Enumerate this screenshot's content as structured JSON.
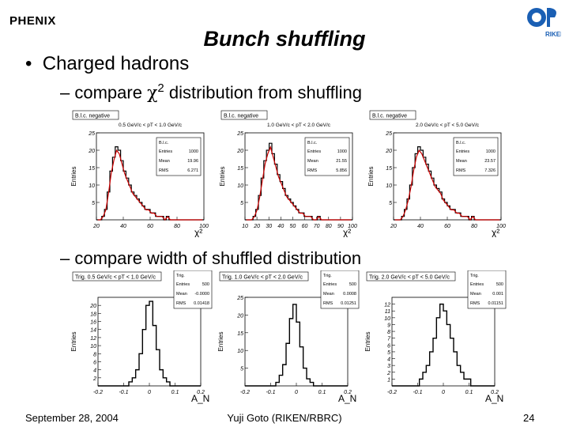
{
  "logo_left": "PHENIX",
  "logo_right": "RIKEN",
  "title": "Bunch shuffling",
  "bullet": "Charged hadrons",
  "sub1": {
    "prefix": "– compare ",
    "chi": "χ",
    "sup": "2",
    "suffix": " distribution from shuffling"
  },
  "sub2": "– compare width of shuffled distribution",
  "footer": {
    "date": "September 28, 2004",
    "author": "Yuji Goto (RIKEN/RBRC)",
    "page": "24"
  },
  "chi2_plots": [
    {
      "tag": "B.l.c. negative",
      "range": "0.5 GeV/c < pT < 1.0 GeV/c",
      "ylabel": "Entries",
      "xlabel": "χ²",
      "ylim": [
        0,
        25
      ],
      "xlim": [
        0,
        100
      ],
      "yticks": [
        "5",
        "10",
        "15",
        "20",
        "25"
      ],
      "xticks": [
        "20",
        "40",
        "60",
        "80",
        "100"
      ],
      "stats": [
        [
          "Entries",
          "1000"
        ],
        [
          "Mean",
          "19.96"
        ],
        [
          "RMS",
          "6.271"
        ]
      ],
      "hist": [
        0,
        0,
        1,
        3,
        8,
        14,
        18,
        21,
        20,
        17,
        14,
        12,
        10,
        8,
        7,
        6,
        5,
        4,
        3,
        3,
        2,
        2,
        1,
        1,
        1,
        0,
        1,
        0,
        0,
        0,
        0,
        0,
        0,
        0,
        0,
        0,
        0,
        0,
        0,
        0
      ]
    },
    {
      "tag": "B.l.c. negative",
      "range": "1.0 GeV/c < pT < 2.0 GeV/c",
      "ylabel": "Entries",
      "xlabel": "χ²",
      "ylim": [
        0,
        25
      ],
      "xlim": [
        0,
        100
      ],
      "yticks": [
        "5",
        "10",
        "15",
        "20",
        "25"
      ],
      "xticks": [
        "10",
        "20",
        "30",
        "40",
        "50",
        "60",
        "70",
        "80",
        "90",
        "100"
      ],
      "stats": [
        [
          "Entries",
          "1000"
        ],
        [
          "Mean",
          "21.55"
        ],
        [
          "RMS",
          "5.856"
        ]
      ],
      "hist": [
        0,
        0,
        0,
        1,
        3,
        7,
        12,
        17,
        20,
        22,
        19,
        16,
        13,
        11,
        9,
        7,
        6,
        5,
        4,
        3,
        2,
        2,
        1,
        1,
        1,
        0,
        0,
        1,
        0,
        0,
        0,
        0,
        0,
        0,
        0,
        0,
        0,
        0,
        0,
        0
      ]
    },
    {
      "tag": "B.l.c. negative",
      "range": "2.0 GeV/c < pT < 5.0 GeV/c",
      "ylabel": "Entries",
      "xlabel": "χ²",
      "ylim": [
        0,
        25
      ],
      "xlim": [
        0,
        100
      ],
      "yticks": [
        "5",
        "10",
        "15",
        "20",
        "25"
      ],
      "xticks": [
        "20",
        "40",
        "60",
        "80",
        "100"
      ],
      "stats": [
        [
          "Entries",
          "1000"
        ],
        [
          "Mean",
          "23.57"
        ],
        [
          "RMS",
          "7.326"
        ]
      ],
      "hist": [
        0,
        0,
        0,
        1,
        3,
        6,
        10,
        15,
        19,
        21,
        20,
        18,
        16,
        14,
        12,
        10,
        9,
        8,
        6,
        5,
        4,
        3,
        3,
        2,
        2,
        1,
        1,
        1,
        0,
        1,
        0,
        0,
        0,
        0,
        0,
        0,
        0,
        0,
        0,
        0
      ]
    }
  ],
  "width_plots": [
    {
      "tag": "Trig. 0.5 GeV/c < pT < 1.0 GeV/c",
      "ylabel": "Entries",
      "xlabel": "A_N",
      "ylim": [
        0,
        22
      ],
      "yticks": [
        "2",
        "4",
        "6",
        "8",
        "10",
        "12",
        "14",
        "16",
        "18",
        "20"
      ],
      "xticks": [
        "-0.2",
        "-0.1",
        "0",
        "0.1",
        "0.2"
      ],
      "stats": [
        [
          "Entries",
          "500"
        ],
        [
          "Mean",
          "-0.0000"
        ],
        [
          "RMS",
          "0.01418"
        ]
      ],
      "hist": [
        0,
        0,
        0,
        0,
        0,
        0,
        0,
        0,
        0,
        1,
        2,
        4,
        8,
        14,
        20,
        21,
        15,
        9,
        4,
        2,
        1,
        0,
        0,
        0,
        0,
        0,
        0,
        0,
        0,
        0
      ]
    },
    {
      "tag": "Trig. 1.0 GeV/c < pT < 2.0 GeV/c",
      "ylabel": "Entries",
      "xlabel": "A_N",
      "ylim": [
        0,
        25
      ],
      "yticks": [
        "5",
        "10",
        "15",
        "20",
        "25"
      ],
      "xticks": [
        "-0.2",
        "-0.1",
        "0",
        "0.1",
        "0.2"
      ],
      "stats": [
        [
          "Entries",
          "500"
        ],
        [
          "Mean",
          "0.0008"
        ],
        [
          "RMS",
          "0.01251"
        ]
      ],
      "hist": [
        0,
        0,
        0,
        0,
        0,
        0,
        0,
        0,
        0,
        1,
        3,
        6,
        12,
        19,
        23,
        18,
        11,
        5,
        2,
        1,
        0,
        0,
        0,
        0,
        0,
        0,
        0,
        0,
        0,
        0
      ]
    },
    {
      "tag": "Trig. 2.0 GeV/c < pT < 5.0 GeV/c",
      "ylabel": "Entries",
      "xlabel": "A_N",
      "ylim": [
        0,
        13
      ],
      "yticks": [
        "1",
        "2",
        "3",
        "4",
        "5",
        "6",
        "7",
        "8",
        "9",
        "10",
        "11",
        "12"
      ],
      "xticks": [
        "-0.2",
        "-0.1",
        "0",
        "0.1",
        "0.2"
      ],
      "stats": [
        [
          "Entries",
          "500"
        ],
        [
          "Mean",
          "0.001"
        ],
        [
          "RMS",
          "0.01151"
        ]
      ],
      "hist": [
        0,
        0,
        0,
        0,
        0,
        0,
        0,
        0,
        1,
        2,
        3,
        5,
        7,
        10,
        12,
        11,
        9,
        7,
        5,
        3,
        2,
        1,
        1,
        0,
        0,
        0,
        0,
        0,
        0,
        0
      ]
    }
  ]
}
